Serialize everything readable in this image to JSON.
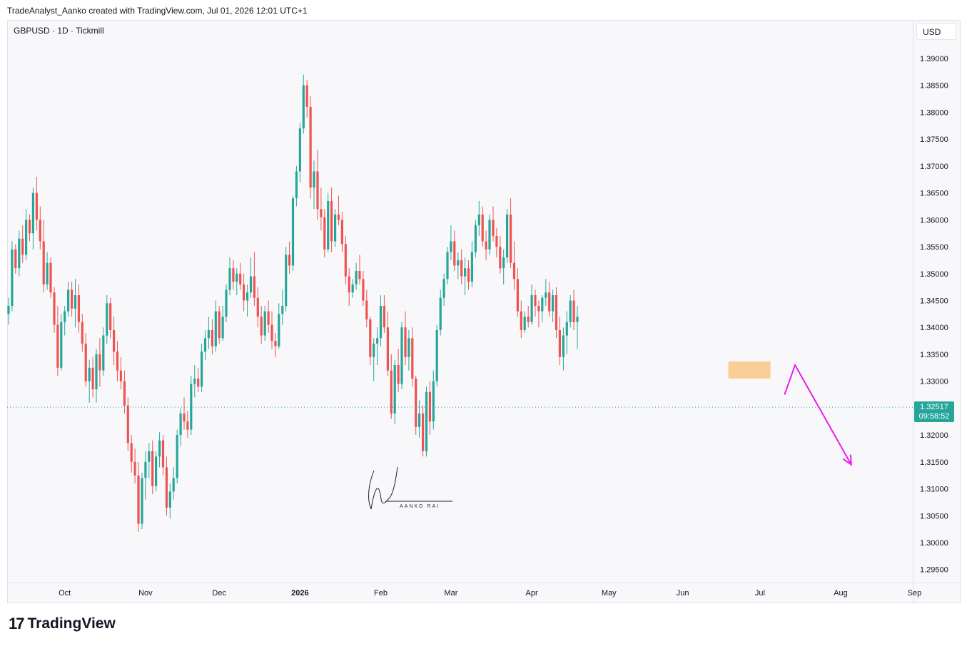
{
  "header": {
    "attribution": "TradeAnalyst_Aanko created with TradingView.com, Jul 01, 2026 12:01 UTC+1",
    "symbol": "GBPUSD · 1D · Tickmill",
    "currency": "USD"
  },
  "footer": {
    "logo_glyph": "17",
    "brand": "TradingView"
  },
  "signature": {
    "text": "AANKO RAI"
  },
  "last_price": {
    "price": "1.32517",
    "countdown": "09:58:52",
    "color": "#26a69a"
  },
  "colors": {
    "up": "#26a69a",
    "down": "#ef5350",
    "zone": "#f9c784",
    "arrow": "#e91ee9"
  },
  "chart_data": {
    "type": "candlestick",
    "symbol": "GBPUSD",
    "timeframe": "1D",
    "ylim": [
      1.292,
      1.3955
    ],
    "y_ticks": [
      "1.39000",
      "1.38500",
      "1.38000",
      "1.37500",
      "1.37000",
      "1.36500",
      "1.36000",
      "1.35500",
      "1.35000",
      "1.34500",
      "1.34000",
      "1.33500",
      "1.33000",
      "1.32500",
      "1.32000",
      "1.31500",
      "1.31000",
      "1.30500",
      "1.30000",
      "1.29500"
    ],
    "x_ticks": [
      {
        "label": "Oct",
        "index": 16
      },
      {
        "label": "Nov",
        "index": 39
      },
      {
        "label": "Dec",
        "index": 60
      },
      {
        "label": "2026",
        "index": 83,
        "bold": true
      },
      {
        "label": "Feb",
        "index": 106
      },
      {
        "label": "Mar",
        "index": 126
      },
      {
        "label": "Apr",
        "index": 149
      },
      {
        "label": "May",
        "index": 171
      },
      {
        "label": "Jun",
        "index": 192
      },
      {
        "label": "Jul",
        "index": 214
      },
      {
        "label": "Aug",
        "index": 237
      },
      {
        "label": "Sep",
        "index": 258
      }
    ],
    "candles": [
      [
        1.3425,
        1.3455,
        1.3405,
        1.344
      ],
      [
        1.344,
        1.356,
        1.343,
        1.3545
      ],
      [
        1.3545,
        1.3555,
        1.35,
        1.351
      ],
      [
        1.351,
        1.358,
        1.3495,
        1.3565
      ],
      [
        1.3565,
        1.359,
        1.352,
        1.3535
      ],
      [
        1.3535,
        1.362,
        1.3525,
        1.36
      ],
      [
        1.36,
        1.361,
        1.356,
        1.3575
      ],
      [
        1.3575,
        1.366,
        1.3545,
        1.365
      ],
      [
        1.365,
        1.368,
        1.358,
        1.36
      ],
      [
        1.36,
        1.3625,
        1.3545,
        1.356
      ],
      [
        1.356,
        1.36,
        1.3465,
        1.348
      ],
      [
        1.348,
        1.354,
        1.347,
        1.352
      ],
      [
        1.352,
        1.353,
        1.3455,
        1.3465
      ],
      [
        1.3465,
        1.3475,
        1.339,
        1.3405
      ],
      [
        1.3405,
        1.344,
        1.331,
        1.3325
      ],
      [
        1.3325,
        1.3425,
        1.332,
        1.341
      ],
      [
        1.341,
        1.344,
        1.3385,
        1.343
      ],
      [
        1.343,
        1.3485,
        1.342,
        1.347
      ],
      [
        1.347,
        1.3485,
        1.342,
        1.3435
      ],
      [
        1.3435,
        1.349,
        1.34,
        1.346
      ],
      [
        1.346,
        1.348,
        1.339,
        1.341
      ],
      [
        1.341,
        1.3425,
        1.3355,
        1.337
      ],
      [
        1.337,
        1.339,
        1.329,
        1.33
      ],
      [
        1.33,
        1.334,
        1.326,
        1.3325
      ],
      [
        1.3325,
        1.3345,
        1.327,
        1.3285
      ],
      [
        1.3285,
        1.336,
        1.326,
        1.335
      ],
      [
        1.335,
        1.338,
        1.329,
        1.332
      ],
      [
        1.332,
        1.34,
        1.331,
        1.3385
      ],
      [
        1.3385,
        1.346,
        1.337,
        1.3445
      ],
      [
        1.3445,
        1.3455,
        1.338,
        1.3395
      ],
      [
        1.3395,
        1.342,
        1.333,
        1.3355
      ],
      [
        1.3355,
        1.3375,
        1.33,
        1.332
      ],
      [
        1.332,
        1.3345,
        1.3285,
        1.33
      ],
      [
        1.33,
        1.332,
        1.324,
        1.3255
      ],
      [
        1.3255,
        1.327,
        1.317,
        1.3185
      ],
      [
        1.3185,
        1.32,
        1.313,
        1.315
      ],
      [
        1.315,
        1.3175,
        1.311,
        1.3125
      ],
      [
        1.3125,
        1.315,
        1.302,
        1.3035
      ],
      [
        1.3035,
        1.313,
        1.3025,
        1.312
      ],
      [
        1.312,
        1.317,
        1.308,
        1.315
      ],
      [
        1.315,
        1.3185,
        1.312,
        1.317
      ],
      [
        1.317,
        1.319,
        1.309,
        1.3105
      ],
      [
        1.3105,
        1.317,
        1.3095,
        1.316
      ],
      [
        1.316,
        1.3205,
        1.314,
        1.319
      ],
      [
        1.319,
        1.32,
        1.3125,
        1.314
      ],
      [
        1.314,
        1.316,
        1.305,
        1.3065
      ],
      [
        1.3065,
        1.311,
        1.3045,
        1.3095
      ],
      [
        1.3095,
        1.314,
        1.308,
        1.312
      ],
      [
        1.312,
        1.321,
        1.311,
        1.32
      ],
      [
        1.32,
        1.325,
        1.318,
        1.324
      ],
      [
        1.324,
        1.327,
        1.321,
        1.3225
      ],
      [
        1.3225,
        1.3245,
        1.3195,
        1.321
      ],
      [
        1.321,
        1.331,
        1.32,
        1.3295
      ],
      [
        1.3295,
        1.333,
        1.327,
        1.3305
      ],
      [
        1.3305,
        1.3325,
        1.328,
        1.329
      ],
      [
        1.329,
        1.337,
        1.328,
        1.3355
      ],
      [
        1.3355,
        1.3395,
        1.334,
        1.338
      ],
      [
        1.338,
        1.342,
        1.336,
        1.3395
      ],
      [
        1.3395,
        1.3415,
        1.335,
        1.3365
      ],
      [
        1.3365,
        1.345,
        1.3355,
        1.343
      ],
      [
        1.343,
        1.344,
        1.337,
        1.338
      ],
      [
        1.338,
        1.344,
        1.3375,
        1.342
      ],
      [
        1.342,
        1.348,
        1.341,
        1.347
      ],
      [
        1.347,
        1.353,
        1.346,
        1.351
      ],
      [
        1.351,
        1.3525,
        1.347,
        1.3485
      ],
      [
        1.3485,
        1.351,
        1.346,
        1.35
      ],
      [
        1.35,
        1.352,
        1.347,
        1.348
      ],
      [
        1.348,
        1.35,
        1.343,
        1.345
      ],
      [
        1.345,
        1.348,
        1.342,
        1.3465
      ],
      [
        1.3465,
        1.353,
        1.3455,
        1.3495
      ],
      [
        1.3495,
        1.354,
        1.344,
        1.3455
      ],
      [
        1.3455,
        1.3475,
        1.34,
        1.342
      ],
      [
        1.342,
        1.344,
        1.337,
        1.3385
      ],
      [
        1.3385,
        1.344,
        1.3375,
        1.343
      ],
      [
        1.343,
        1.345,
        1.339,
        1.3405
      ],
      [
        1.3405,
        1.343,
        1.336,
        1.3375
      ],
      [
        1.3375,
        1.339,
        1.3345,
        1.3365
      ],
      [
        1.3365,
        1.3445,
        1.336,
        1.3425
      ],
      [
        1.3425,
        1.347,
        1.3405,
        1.344
      ],
      [
        1.344,
        1.355,
        1.343,
        1.3535
      ],
      [
        1.3535,
        1.356,
        1.35,
        1.3515
      ],
      [
        1.3515,
        1.3645,
        1.3505,
        1.364
      ],
      [
        1.364,
        1.37,
        1.3625,
        1.369
      ],
      [
        1.369,
        1.378,
        1.367,
        1.377
      ],
      [
        1.377,
        1.387,
        1.376,
        1.385
      ],
      [
        1.385,
        1.386,
        1.379,
        1.381
      ],
      [
        1.381,
        1.383,
        1.364,
        1.366
      ],
      [
        1.366,
        1.371,
        1.362,
        1.369
      ],
      [
        1.369,
        1.373,
        1.36,
        1.362
      ],
      [
        1.362,
        1.366,
        1.358,
        1.3605
      ],
      [
        1.3605,
        1.362,
        1.353,
        1.3545
      ],
      [
        1.3545,
        1.365,
        1.354,
        1.3635
      ],
      [
        1.3635,
        1.366,
        1.354,
        1.356
      ],
      [
        1.356,
        1.362,
        1.355,
        1.361
      ],
      [
        1.361,
        1.3645,
        1.359,
        1.36
      ],
      [
        1.36,
        1.3615,
        1.354,
        1.3555
      ],
      [
        1.3555,
        1.357,
        1.348,
        1.3495
      ],
      [
        1.3495,
        1.351,
        1.344,
        1.3465
      ],
      [
        1.3465,
        1.349,
        1.3455,
        1.348
      ],
      [
        1.348,
        1.352,
        1.347,
        1.3505
      ],
      [
        1.3505,
        1.3535,
        1.348,
        1.349
      ],
      [
        1.349,
        1.3505,
        1.344,
        1.345
      ],
      [
        1.345,
        1.347,
        1.34,
        1.3415
      ],
      [
        1.3415,
        1.342,
        1.333,
        1.3345
      ],
      [
        1.3345,
        1.338,
        1.33,
        1.337
      ],
      [
        1.337,
        1.34,
        1.333,
        1.338
      ],
      [
        1.338,
        1.346,
        1.3365,
        1.344
      ],
      [
        1.344,
        1.346,
        1.339,
        1.34
      ],
      [
        1.34,
        1.343,
        1.331,
        1.332
      ],
      [
        1.332,
        1.335,
        1.323,
        1.324
      ],
      [
        1.324,
        1.334,
        1.322,
        1.333
      ],
      [
        1.333,
        1.336,
        1.328,
        1.3295
      ],
      [
        1.3295,
        1.341,
        1.3285,
        1.34
      ],
      [
        1.34,
        1.343,
        1.333,
        1.3345
      ],
      [
        1.3345,
        1.3395,
        1.332,
        1.338
      ],
      [
        1.338,
        1.34,
        1.329,
        1.3305
      ],
      [
        1.3305,
        1.331,
        1.32,
        1.3215
      ],
      [
        1.3215,
        1.3265,
        1.3195,
        1.324
      ],
      [
        1.324,
        1.3255,
        1.316,
        1.317
      ],
      [
        1.317,
        1.329,
        1.316,
        1.328
      ],
      [
        1.328,
        1.33,
        1.32,
        1.3225
      ],
      [
        1.3225,
        1.332,
        1.321,
        1.33
      ],
      [
        1.33,
        1.3405,
        1.329,
        1.3395
      ],
      [
        1.3395,
        1.347,
        1.3385,
        1.3455
      ],
      [
        1.3455,
        1.35,
        1.344,
        1.349
      ],
      [
        1.349,
        1.355,
        1.348,
        1.354
      ],
      [
        1.354,
        1.359,
        1.3525,
        1.356
      ],
      [
        1.356,
        1.358,
        1.3505,
        1.3515
      ],
      [
        1.3515,
        1.354,
        1.349,
        1.3525
      ],
      [
        1.3525,
        1.3545,
        1.348,
        1.3495
      ],
      [
        1.3495,
        1.353,
        1.346,
        1.351
      ],
      [
        1.351,
        1.3525,
        1.347,
        1.3485
      ],
      [
        1.3485,
        1.356,
        1.3475,
        1.354
      ],
      [
        1.354,
        1.36,
        1.353,
        1.359
      ],
      [
        1.359,
        1.3635,
        1.357,
        1.361
      ],
      [
        1.361,
        1.3625,
        1.355,
        1.356
      ],
      [
        1.356,
        1.358,
        1.3525,
        1.3545
      ],
      [
        1.3545,
        1.361,
        1.3535,
        1.36
      ],
      [
        1.36,
        1.3625,
        1.356,
        1.357
      ],
      [
        1.357,
        1.3585,
        1.353,
        1.355
      ],
      [
        1.355,
        1.357,
        1.35,
        1.351
      ],
      [
        1.351,
        1.3545,
        1.348,
        1.353
      ],
      [
        1.353,
        1.362,
        1.352,
        1.361
      ],
      [
        1.361,
        1.364,
        1.351,
        1.352
      ],
      [
        1.352,
        1.356,
        1.347,
        1.349
      ],
      [
        1.349,
        1.351,
        1.342,
        1.343
      ],
      [
        1.343,
        1.345,
        1.338,
        1.3395
      ],
      [
        1.3395,
        1.343,
        1.339,
        1.342
      ],
      [
        1.342,
        1.344,
        1.34,
        1.341
      ],
      [
        1.341,
        1.348,
        1.3405,
        1.346
      ],
      [
        1.346,
        1.347,
        1.342,
        1.344
      ],
      [
        1.344,
        1.345,
        1.34,
        1.343
      ],
      [
        1.343,
        1.346,
        1.341,
        1.3455
      ],
      [
        1.3455,
        1.349,
        1.344,
        1.3465
      ],
      [
        1.3465,
        1.3485,
        1.342,
        1.343
      ],
      [
        1.343,
        1.347,
        1.341,
        1.346
      ],
      [
        1.346,
        1.3475,
        1.338,
        1.3395
      ],
      [
        1.3395,
        1.342,
        1.333,
        1.3345
      ],
      [
        1.3345,
        1.34,
        1.332,
        1.3385
      ],
      [
        1.3385,
        1.343,
        1.335,
        1.341
      ],
      [
        1.341,
        1.346,
        1.34,
        1.345
      ],
      [
        1.345,
        1.347,
        1.3395,
        1.341
      ],
      [
        1.341,
        1.344,
        1.336,
        1.342
      ]
    ],
    "zone": {
      "from_index": 205,
      "to_index": 217,
      "low": 1.3305,
      "high": 1.3337
    },
    "projection": [
      {
        "index": 221,
        "price": 1.3275
      },
      {
        "index": 224,
        "price": 1.333
      },
      {
        "index": 240,
        "price": 1.3145
      }
    ]
  }
}
